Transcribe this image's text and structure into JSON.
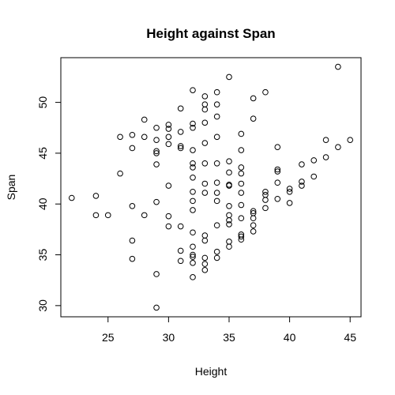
{
  "chart_data": {
    "type": "scatter",
    "title": "Height against Span",
    "xlabel": "Height",
    "ylabel": "Span",
    "xlim": [
      21.1,
      45.9
    ],
    "ylim": [
      28.9,
      54.4
    ],
    "xticks": [
      25,
      30,
      35,
      40,
      45
    ],
    "yticks": [
      30,
      35,
      40,
      45,
      50
    ],
    "grid": false,
    "marker": "open-circle",
    "points": [
      {
        "x": 22,
        "y": 40.6
      },
      {
        "x": 24,
        "y": 38.9
      },
      {
        "x": 24,
        "y": 40.8
      },
      {
        "x": 25,
        "y": 38.9
      },
      {
        "x": 26,
        "y": 43.0
      },
      {
        "x": 26,
        "y": 46.6
      },
      {
        "x": 27,
        "y": 34.6
      },
      {
        "x": 27,
        "y": 36.4
      },
      {
        "x": 27,
        "y": 39.8
      },
      {
        "x": 27,
        "y": 45.5
      },
      {
        "x": 27,
        "y": 46.8
      },
      {
        "x": 28,
        "y": 38.9
      },
      {
        "x": 28,
        "y": 46.6
      },
      {
        "x": 28,
        "y": 48.3
      },
      {
        "x": 29,
        "y": 29.8
      },
      {
        "x": 29,
        "y": 33.1
      },
      {
        "x": 29,
        "y": 40.2
      },
      {
        "x": 29,
        "y": 43.9
      },
      {
        "x": 29,
        "y": 45.0
      },
      {
        "x": 29,
        "y": 45.2
      },
      {
        "x": 29,
        "y": 46.3
      },
      {
        "x": 29,
        "y": 47.5
      },
      {
        "x": 30,
        "y": 37.8
      },
      {
        "x": 30,
        "y": 38.8
      },
      {
        "x": 30,
        "y": 41.8
      },
      {
        "x": 30,
        "y": 45.9
      },
      {
        "x": 30,
        "y": 46.6
      },
      {
        "x": 30,
        "y": 47.4
      },
      {
        "x": 30,
        "y": 47.8
      },
      {
        "x": 31,
        "y": 34.4
      },
      {
        "x": 31,
        "y": 35.4
      },
      {
        "x": 31,
        "y": 37.8
      },
      {
        "x": 31,
        "y": 45.5
      },
      {
        "x": 31,
        "y": 45.7
      },
      {
        "x": 31,
        "y": 47.1
      },
      {
        "x": 31,
        "y": 49.4
      },
      {
        "x": 32,
        "y": 32.8
      },
      {
        "x": 32,
        "y": 34.2
      },
      {
        "x": 32,
        "y": 34.8
      },
      {
        "x": 32,
        "y": 35.0
      },
      {
        "x": 32,
        "y": 35.8
      },
      {
        "x": 32,
        "y": 37.2
      },
      {
        "x": 32,
        "y": 39.4
      },
      {
        "x": 32,
        "y": 40.3
      },
      {
        "x": 32,
        "y": 41.2
      },
      {
        "x": 32,
        "y": 42.6
      },
      {
        "x": 32,
        "y": 43.6
      },
      {
        "x": 32,
        "y": 44.0
      },
      {
        "x": 32,
        "y": 45.3
      },
      {
        "x": 32,
        "y": 47.5
      },
      {
        "x": 32,
        "y": 47.9
      },
      {
        "x": 32,
        "y": 51.2
      },
      {
        "x": 33,
        "y": 33.5
      },
      {
        "x": 33,
        "y": 34.1
      },
      {
        "x": 33,
        "y": 34.7
      },
      {
        "x": 33,
        "y": 36.4
      },
      {
        "x": 33,
        "y": 36.9
      },
      {
        "x": 33,
        "y": 41.1
      },
      {
        "x": 33,
        "y": 42.0
      },
      {
        "x": 33,
        "y": 44.0
      },
      {
        "x": 33,
        "y": 46.0
      },
      {
        "x": 33,
        "y": 48.0
      },
      {
        "x": 33,
        "y": 49.3
      },
      {
        "x": 33,
        "y": 49.8
      },
      {
        "x": 33,
        "y": 50.6
      },
      {
        "x": 34,
        "y": 34.7
      },
      {
        "x": 34,
        "y": 35.3
      },
      {
        "x": 34,
        "y": 37.9
      },
      {
        "x": 34,
        "y": 40.3
      },
      {
        "x": 34,
        "y": 41.1
      },
      {
        "x": 34,
        "y": 42.1
      },
      {
        "x": 34,
        "y": 44.0
      },
      {
        "x": 34,
        "y": 46.6
      },
      {
        "x": 34,
        "y": 48.6
      },
      {
        "x": 34,
        "y": 49.8
      },
      {
        "x": 34,
        "y": 51.0
      },
      {
        "x": 35,
        "y": 35.8
      },
      {
        "x": 35,
        "y": 36.3
      },
      {
        "x": 35,
        "y": 38.0
      },
      {
        "x": 35,
        "y": 38.4
      },
      {
        "x": 35,
        "y": 38.9
      },
      {
        "x": 35,
        "y": 39.8
      },
      {
        "x": 35,
        "y": 41.8
      },
      {
        "x": 35,
        "y": 41.9
      },
      {
        "x": 35,
        "y": 43.1
      },
      {
        "x": 35,
        "y": 44.2
      },
      {
        "x": 35,
        "y": 52.5
      },
      {
        "x": 36,
        "y": 36.5
      },
      {
        "x": 36,
        "y": 36.8
      },
      {
        "x": 36,
        "y": 37.0
      },
      {
        "x": 36,
        "y": 38.6
      },
      {
        "x": 36,
        "y": 39.9
      },
      {
        "x": 36,
        "y": 41.1
      },
      {
        "x": 36,
        "y": 42.0
      },
      {
        "x": 36,
        "y": 43.0
      },
      {
        "x": 36,
        "y": 43.6
      },
      {
        "x": 36,
        "y": 45.3
      },
      {
        "x": 36,
        "y": 46.9
      },
      {
        "x": 37,
        "y": 37.3
      },
      {
        "x": 37,
        "y": 37.9
      },
      {
        "x": 37,
        "y": 38.6
      },
      {
        "x": 37,
        "y": 39.1
      },
      {
        "x": 37,
        "y": 39.3
      },
      {
        "x": 37,
        "y": 48.4
      },
      {
        "x": 37,
        "y": 50.4
      },
      {
        "x": 38,
        "y": 39.6
      },
      {
        "x": 38,
        "y": 40.4
      },
      {
        "x": 38,
        "y": 40.9
      },
      {
        "x": 38,
        "y": 41.2
      },
      {
        "x": 38,
        "y": 51.0
      },
      {
        "x": 39,
        "y": 40.5
      },
      {
        "x": 39,
        "y": 42.1
      },
      {
        "x": 39,
        "y": 43.2
      },
      {
        "x": 39,
        "y": 43.4
      },
      {
        "x": 39,
        "y": 45.6
      },
      {
        "x": 40,
        "y": 40.1
      },
      {
        "x": 40,
        "y": 41.2
      },
      {
        "x": 40,
        "y": 41.5
      },
      {
        "x": 41,
        "y": 41.8
      },
      {
        "x": 41,
        "y": 42.2
      },
      {
        "x": 41,
        "y": 43.9
      },
      {
        "x": 42,
        "y": 42.7
      },
      {
        "x": 42,
        "y": 44.3
      },
      {
        "x": 43,
        "y": 44.6
      },
      {
        "x": 43,
        "y": 46.3
      },
      {
        "x": 44,
        "y": 45.6
      },
      {
        "x": 44,
        "y": 53.5
      },
      {
        "x": 45,
        "y": 46.3
      }
    ]
  }
}
